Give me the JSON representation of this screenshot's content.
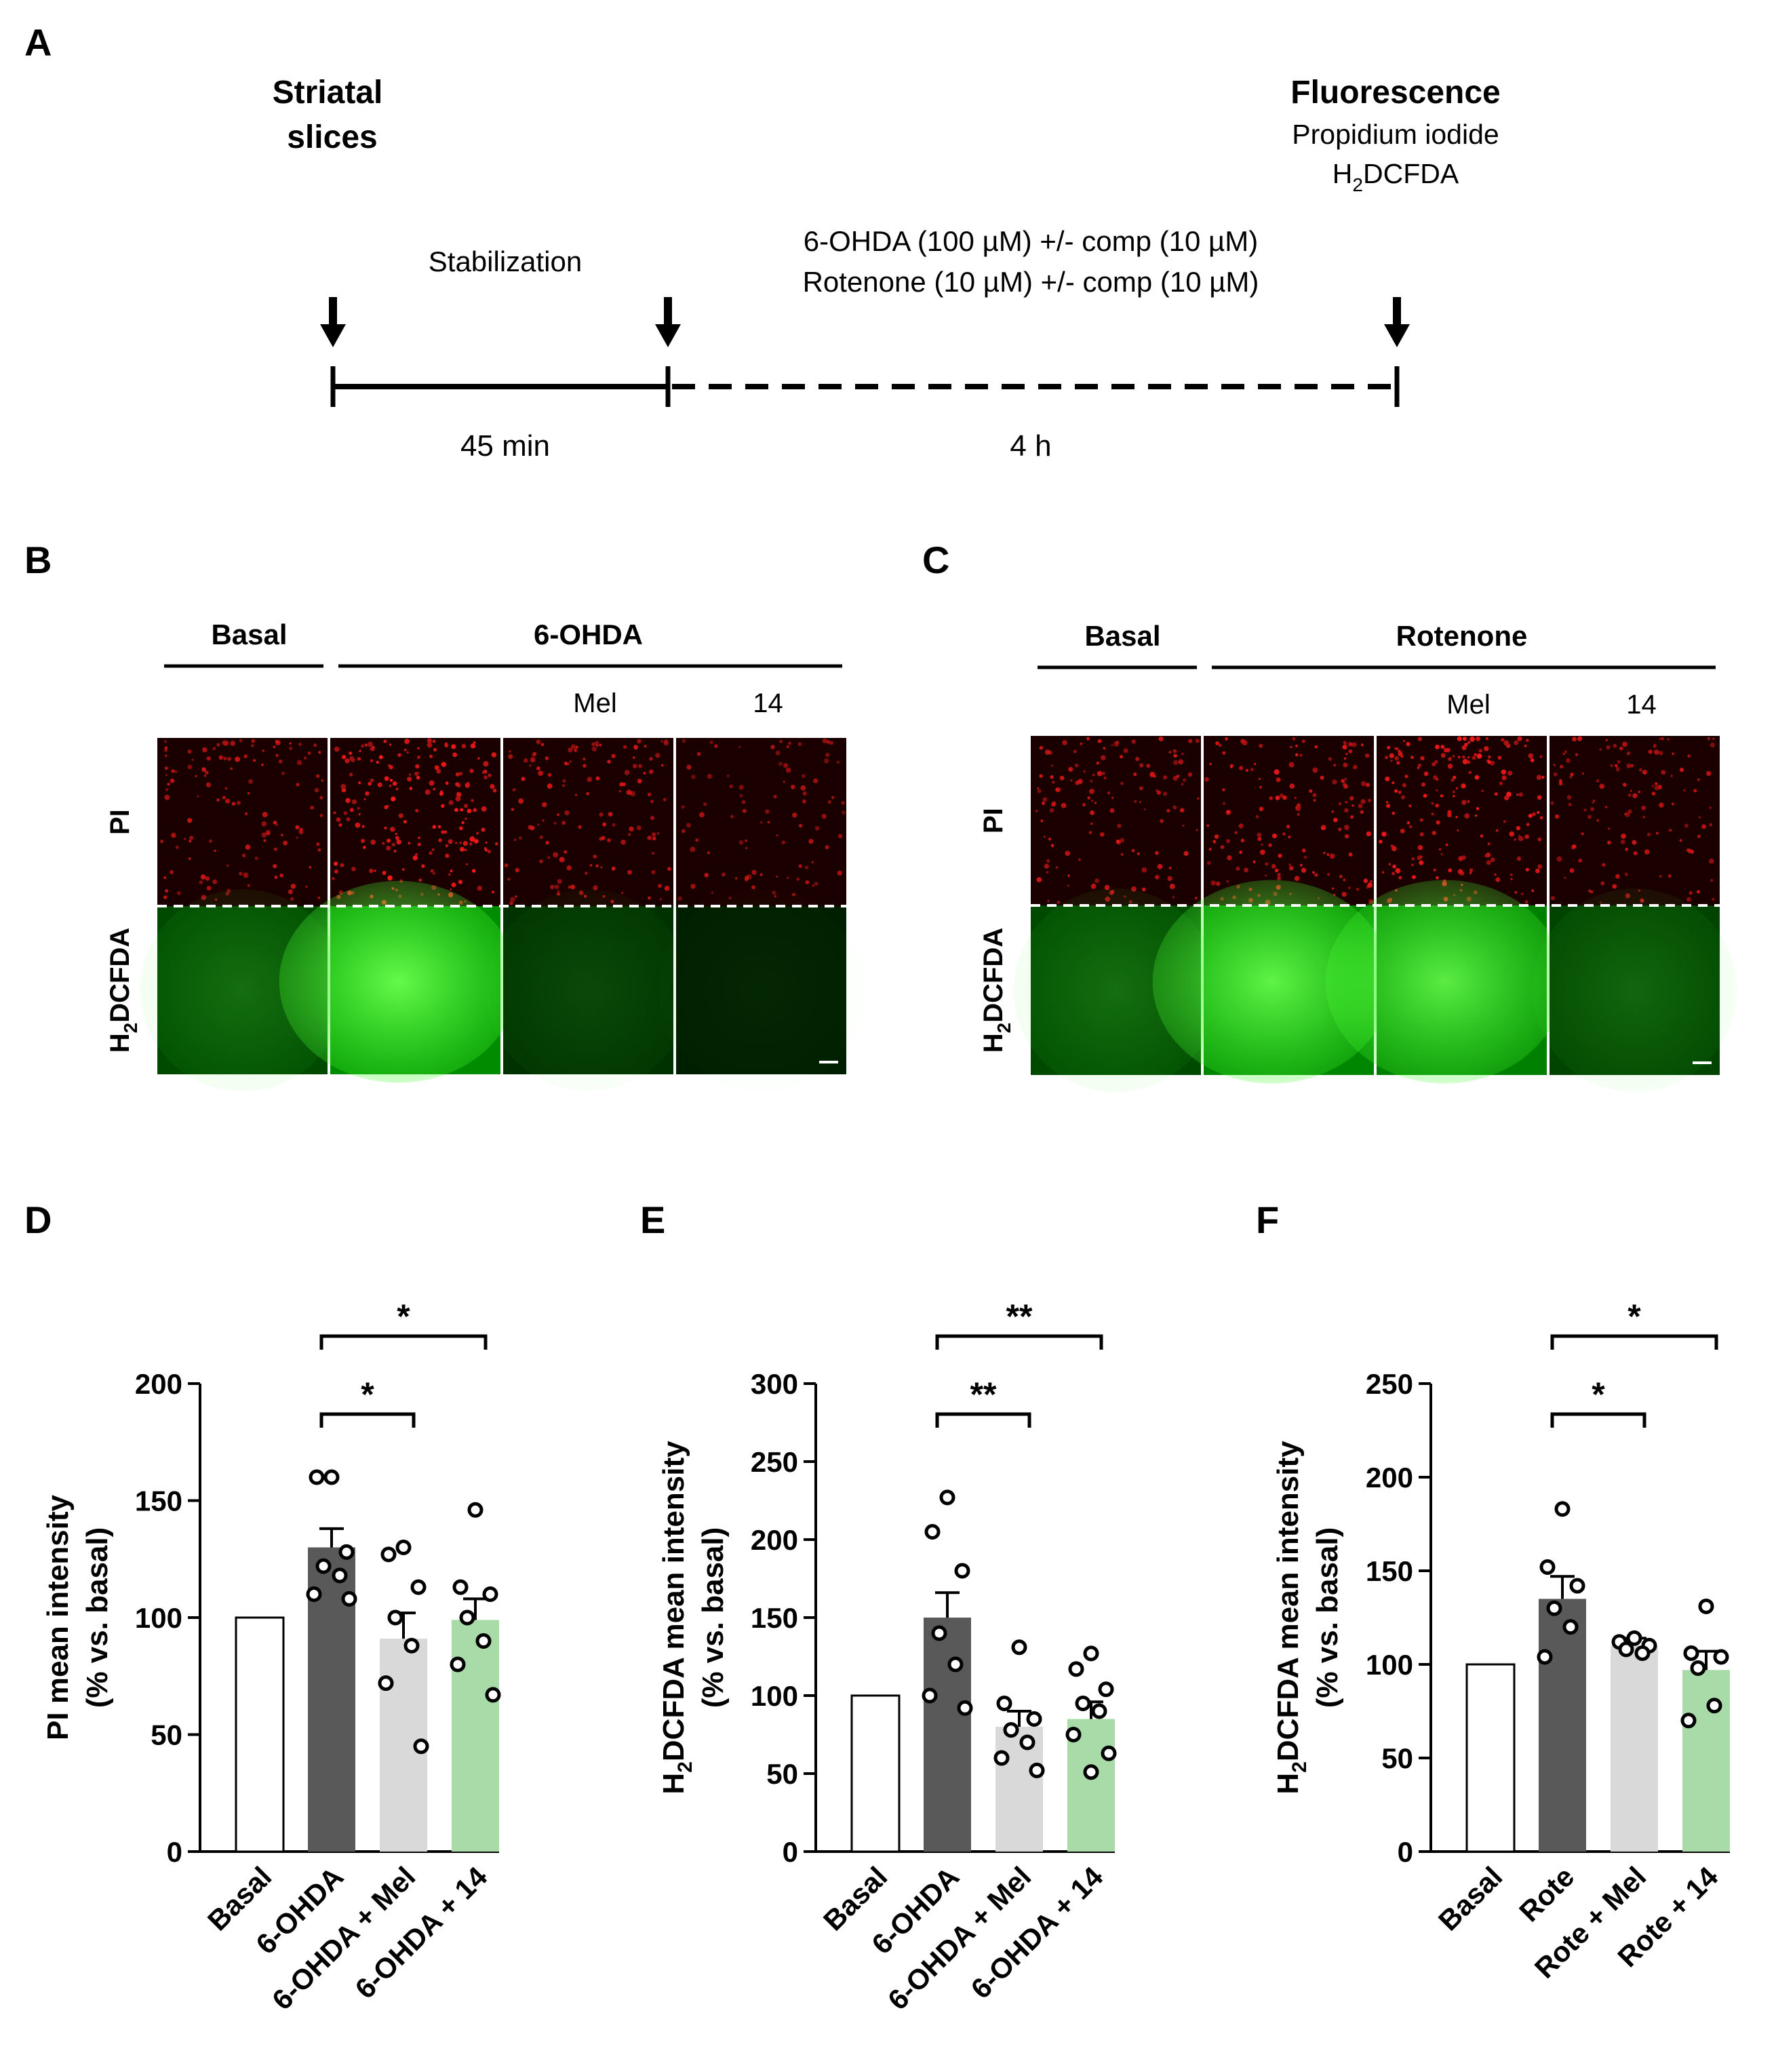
{
  "panel_labels": {
    "a": "A",
    "b": "B",
    "c": "C",
    "d": "D",
    "e": "E",
    "f": "F"
  },
  "timeline": {
    "start_title_1": "Striatal",
    "start_title_2": "slices",
    "end_title": "Fluorescence",
    "end_sub_1": "Propidium iodide",
    "end_sub_2_main": "H",
    "end_sub_2_sub": "2",
    "end_sub_2_rest": "DCFDA",
    "phase1_label": "Stabilization",
    "phase1_time": "45 min",
    "phase2_line1": "6-OHDA (100 µM) +/- comp (10 µM)",
    "phase2_line2": "Rotenone (10 µM) +/- comp (10 µM)",
    "phase2_time": "4 h"
  },
  "micrographs": [
    {
      "basal_label": "Basal",
      "treatment_label": "6-OHDA",
      "col_labels": [
        "",
        "",
        "Mel",
        "14"
      ],
      "row1_label": "PI",
      "row2_main": "H",
      "row2_sub": "2",
      "row2_rest": "DCFDA",
      "pi_intensity": [
        0.55,
        1.0,
        0.6,
        0.35
      ],
      "green_intensity": [
        0.45,
        1.0,
        0.25,
        0.08
      ]
    },
    {
      "basal_label": "Basal",
      "treatment_label": "Rotenone",
      "col_labels": [
        "",
        "",
        "Mel",
        "14"
      ],
      "row1_label": "PI",
      "row2_main": "H",
      "row2_sub": "2",
      "row2_rest": "DCFDA",
      "pi_intensity": [
        0.6,
        0.75,
        0.95,
        0.55
      ],
      "green_intensity": [
        0.45,
        0.95,
        0.9,
        0.4
      ]
    }
  ],
  "chart_data": [
    {
      "type": "bar",
      "ylabel_line1": "PI mean intensity",
      "ylabel_line2": "(% vs. basal)",
      "ylim": [
        0,
        200
      ],
      "yticks": [
        0,
        50,
        100,
        150,
        200
      ],
      "categories": [
        "Basal",
        "6-OHDA",
        "6-OHDA + Mel",
        "6-OHDA + 14"
      ],
      "values": [
        100,
        130,
        91,
        99
      ],
      "errors": [
        0,
        8,
        11,
        9
      ],
      "colors": [
        "#ffffff",
        "#595959",
        "#d9d9d9",
        "#a9dba9"
      ],
      "points": [
        [],
        [
          160,
          160,
          128,
          122,
          118,
          110,
          108
        ],
        [
          130,
          127,
          113,
          100,
          88,
          72,
          45
        ],
        [
          146,
          113,
          110,
          100,
          90,
          80,
          67
        ]
      ],
      "significance": [
        {
          "from": 1,
          "to": 3,
          "label": "*"
        },
        {
          "from": 1,
          "to": 2,
          "label": "*"
        }
      ]
    },
    {
      "type": "bar",
      "ylabel_line1_main": "H",
      "ylabel_line1_sub": "2",
      "ylabel_line1_rest": "DCFDA mean intensity",
      "ylabel_line2": "(% vs. basal)",
      "ylim": [
        0,
        300
      ],
      "yticks": [
        0,
        50,
        100,
        150,
        200,
        250,
        300
      ],
      "categories": [
        "Basal",
        "6-OHDA",
        "6-OHDA + Mel",
        "6-OHDA + 14"
      ],
      "values": [
        100,
        150,
        80,
        85
      ],
      "errors": [
        0,
        16,
        10,
        11
      ],
      "colors": [
        "#ffffff",
        "#595959",
        "#d9d9d9",
        "#a9dba9"
      ],
      "points": [
        [],
        [
          227,
          205,
          180,
          140,
          120,
          100,
          92
        ],
        [
          131,
          95,
          85,
          78,
          70,
          60,
          52
        ],
        [
          127,
          117,
          104,
          95,
          90,
          75,
          63,
          51
        ]
      ],
      "significance": [
        {
          "from": 1,
          "to": 3,
          "label": "**"
        },
        {
          "from": 1,
          "to": 2,
          "label": "**"
        }
      ]
    },
    {
      "type": "bar",
      "ylabel_line1_main": "H",
      "ylabel_line1_sub": "2",
      "ylabel_line1_rest": "DCFDA mean intensity",
      "ylabel_line2": "(% vs. basal)",
      "ylim": [
        0,
        250
      ],
      "yticks": [
        0,
        50,
        100,
        150,
        200,
        250
      ],
      "categories": [
        "Basal",
        "Rote",
        "Rote + Mel",
        "Rote + 14"
      ],
      "values": [
        100,
        135,
        110,
        97
      ],
      "errors": [
        0,
        12,
        4,
        10
      ],
      "colors": [
        "#ffffff",
        "#595959",
        "#d9d9d9",
        "#a9dba9"
      ],
      "points": [
        [],
        [
          183,
          152,
          142,
          130,
          120,
          104
        ],
        [
          114,
          112,
          110,
          108,
          106
        ],
        [
          131,
          106,
          104,
          98,
          78,
          70
        ]
      ],
      "significance": [
        {
          "from": 1,
          "to": 3,
          "label": "*"
        },
        {
          "from": 1,
          "to": 2,
          "label": "*"
        }
      ]
    }
  ]
}
